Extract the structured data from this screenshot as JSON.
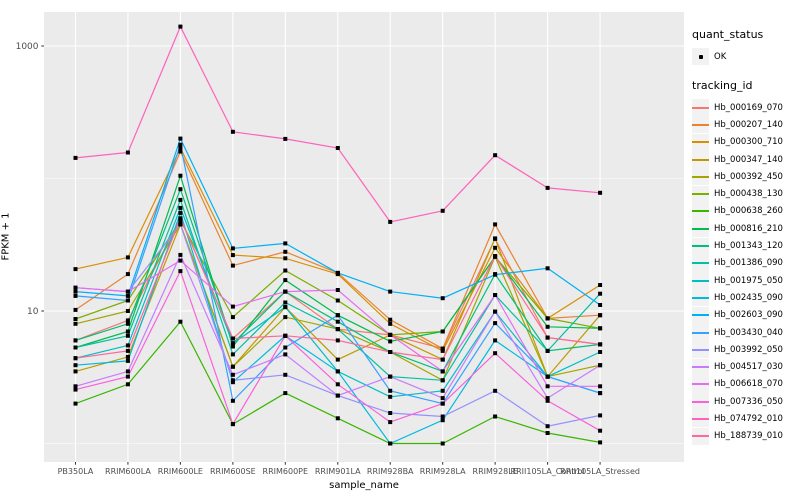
{
  "figure": {
    "background": "#FFFFFF",
    "panel_background": "#EBEBEB",
    "grid_color": "#FFFFFF",
    "axis_text_color": "#4D4D4D",
    "point_color": "#000000"
  },
  "y_axis": {
    "title": "FPKM + 1",
    "scale": "log10",
    "major_breaks": [
      10,
      1000
    ],
    "minor_breaks": [
      1,
      100
    ],
    "tick_labels": [
      "10",
      "1000"
    ]
  },
  "x_axis": {
    "title": "sample_name"
  },
  "legend": {
    "quant_status": {
      "title": "quant_status",
      "items": [
        {
          "label": "OK",
          "shape": "point",
          "color": "#000000"
        }
      ]
    },
    "tracking_id": {
      "title": "tracking_id"
    }
  },
  "chart_data": {
    "type": "line",
    "title": "",
    "xlabel": "sample_name",
    "ylabel": "FPKM + 1",
    "y_scale": "log10",
    "ylim": [
      0.72,
      1800
    ],
    "grid": true,
    "legend_position": "right",
    "marker": {
      "shape": "point",
      "color": "#000000",
      "legend_label": "OK"
    },
    "categories": [
      "PB350LA",
      "RRIM600LA",
      "RRIM600LE",
      "RRIM600SE",
      "RRIM600PE",
      "RRIM901LA",
      "RRIM928BA",
      "RRIM928LA",
      "RRIM928LE",
      "RRII105LA_Control",
      "RRII105LA_Stressed"
    ],
    "series": [
      {
        "name": "Hb_000169_070",
        "color": "#F8766D",
        "values": [
          6.0,
          8.5,
          50,
          6.2,
          14,
          7.3,
          6.6,
          5.2,
          35,
          6.3,
          5.6
        ]
      },
      {
        "name": "Hb_000207_140",
        "color": "#EA8331",
        "values": [
          10.2,
          19,
          160,
          22,
          28,
          19.4,
          8.6,
          5.2,
          45,
          8.8,
          9.3
        ]
      },
      {
        "name": "Hb_000300_710",
        "color": "#D89000",
        "values": [
          20.7,
          25.4,
          170,
          26.4,
          25,
          19,
          8.0,
          5.0,
          30,
          8.8,
          15.7
        ]
      },
      {
        "name": "Hb_000347_140",
        "color": "#C09B00",
        "values": [
          3.5,
          4.5,
          45,
          3.8,
          10.7,
          4.3,
          6.6,
          4.3,
          35.3,
          3.2,
          9.3
        ]
      },
      {
        "name": "Hb_000392_450",
        "color": "#A3A500",
        "values": [
          8.0,
          10,
          45,
          3.8,
          9.0,
          7.3,
          4.9,
          3.0,
          25.7,
          3.2,
          3.9
        ]
      },
      {
        "name": "Hb_000438_130",
        "color": "#7CAE00",
        "values": [
          8.7,
          12,
          48,
          9.0,
          20.2,
          12.0,
          6.6,
          7.0,
          25.7,
          8.8,
          7.4
        ]
      },
      {
        "name": "Hb_000638_260",
        "color": "#39B600",
        "values": [
          2.0,
          2.8,
          8.3,
          1.4,
          2.4,
          1.55,
          1.0,
          1.0,
          1.6,
          1.2,
          1.02
        ]
      },
      {
        "name": "Hb_000816_210",
        "color": "#00BB4E",
        "values": [
          5.3,
          7.0,
          105,
          5.4,
          17.1,
          9.3,
          5.9,
          7.0,
          25.7,
          7.6,
          7.4
        ]
      },
      {
        "name": "Hb_001343_120",
        "color": "#00BF7D",
        "values": [
          6.0,
          8.0,
          83,
          5.7,
          14,
          8.3,
          4.9,
          3.5,
          19,
          5.0,
          5.6
        ]
      },
      {
        "name": "Hb_001386_090",
        "color": "#00C1A3",
        "values": [
          5.3,
          6.5,
          69,
          4.7,
          11.6,
          7.3,
          3.2,
          3.0,
          13.2,
          5.0,
          13.5
        ]
      },
      {
        "name": "Hb_001975_050",
        "color": "#00BFC4",
        "values": [
          4.4,
          5.5,
          60,
          5.7,
          10.7,
          3.5,
          2.25,
          2.5,
          9.9,
          3.2,
          4.9
        ]
      },
      {
        "name": "Hb_002435_090",
        "color": "#00BAE0",
        "values": [
          3.9,
          4.2,
          55,
          2.9,
          6.5,
          3.5,
          1.0,
          1.5,
          6.0,
          3.2,
          2.4
        ]
      },
      {
        "name": "Hb_002603_090",
        "color": "#00B0F6",
        "values": [
          14,
          13,
          200,
          29.7,
          32.4,
          19.4,
          14,
          12.5,
          18.8,
          21,
          11.1
        ]
      },
      {
        "name": "Hb_003430_040",
        "color": "#35A2FF",
        "values": [
          13,
          12,
          180,
          2.1,
          5.3,
          9.3,
          2.5,
          2.0,
          8.1,
          3.2,
          2.4
        ]
      },
      {
        "name": "Hb_003992_050",
        "color": "#9590FF",
        "values": [
          15,
          14,
          45,
          3.0,
          3.3,
          2.3,
          1.7,
          1.6,
          2.5,
          1.35,
          1.63
        ]
      },
      {
        "name": "Hb_004517_030",
        "color": "#C77CFF",
        "values": [
          2.7,
          3.5,
          26.5,
          3.3,
          4.7,
          2.3,
          3.2,
          2.2,
          9.9,
          2.2,
          3.9
        ]
      },
      {
        "name": "Hb_006618_070",
        "color": "#E76BF3",
        "values": [
          15,
          14,
          24,
          10.8,
          14,
          14.4,
          6.6,
          3.5,
          13.2,
          2.7,
          2.7
        ]
      },
      {
        "name": "Hb_007336_050",
        "color": "#FA62DB",
        "values": [
          2.55,
          3.2,
          20,
          1.4,
          6.5,
          2.8,
          1.45,
          2.0,
          4.8,
          2.1,
          1.25
        ]
      },
      {
        "name": "Hb_074792_010",
        "color": "#FF62BC",
        "values": [
          143,
          157,
          1400,
          225,
          199,
          170,
          47,
          57,
          150,
          85,
          78
        ]
      },
      {
        "name": "Hb_188739_010",
        "color": "#FF6A98",
        "values": [
          4.4,
          5.0,
          50,
          6.2,
          6.5,
          6.0,
          4.9,
          4.3,
          26,
          6.3,
          5.6
        ]
      }
    ]
  }
}
